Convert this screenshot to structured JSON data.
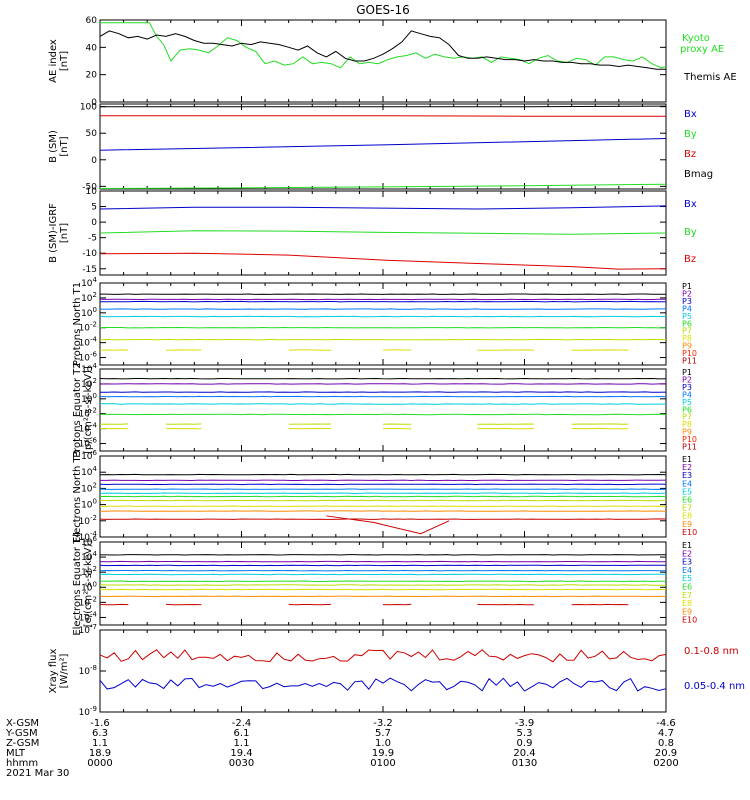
{
  "title": "GOES-16",
  "chart_data": [
    {
      "type": "line",
      "ylabel": "AE index [nT]",
      "ylim": [
        0,
        60
      ],
      "yticks": [
        "0",
        "20",
        "40",
        "60"
      ],
      "series": [
        {
          "name": "Kyoto proxy AE",
          "color": "#22dd22",
          "x": [
            0,
            3,
            6,
            9,
            10.5,
            12,
            13.5,
            15,
            17,
            19,
            21,
            23,
            25,
            27,
            29,
            31,
            33,
            35,
            37,
            39,
            41,
            43,
            45,
            47,
            49,
            51,
            53,
            55,
            57,
            59,
            61,
            63,
            65,
            67,
            69,
            71,
            73,
            75,
            77,
            79,
            81,
            83,
            85,
            87,
            89,
            91,
            93,
            95,
            97,
            99,
            101,
            103,
            105,
            107,
            109,
            111,
            113,
            115,
            117,
            119,
            120
          ],
          "y": [
            58,
            58,
            58,
            58,
            58,
            48,
            42,
            30,
            38,
            39,
            38,
            36,
            41,
            47,
            45,
            40,
            37,
            28,
            30,
            27,
            28,
            33,
            28,
            29,
            28,
            25,
            33,
            28,
            29,
            28,
            31,
            33,
            34,
            36,
            32,
            35,
            33,
            32,
            33,
            32,
            33,
            29,
            33,
            32,
            31,
            28,
            32,
            34,
            30,
            29,
            32,
            31,
            27,
            33,
            33,
            31,
            30,
            33,
            28,
            25,
            26
          ]
        },
        {
          "name": "Themis AE",
          "color": "#000000",
          "x": [
            0,
            2,
            4,
            6,
            8,
            10,
            12,
            14,
            16,
            18,
            20,
            22,
            24,
            26,
            28,
            30,
            32,
            34,
            36,
            38,
            40,
            42,
            44,
            46,
            48,
            50,
            52,
            54,
            56,
            58,
            60,
            62,
            64,
            66,
            68,
            70,
            72,
            74,
            76,
            78,
            80,
            82,
            84,
            86,
            88,
            90,
            92,
            94,
            96,
            98,
            100,
            102,
            104,
            106,
            108,
            110,
            112,
            114,
            116,
            118,
            120
          ],
          "y": [
            48,
            52,
            50,
            47,
            48,
            46,
            49,
            48,
            50,
            48,
            45,
            43,
            43,
            42,
            41,
            43,
            42,
            44,
            43,
            42,
            40,
            38,
            41,
            36,
            33,
            37,
            32,
            30,
            30,
            32,
            35,
            39,
            44,
            52,
            50,
            48,
            47,
            42,
            34,
            32,
            32,
            33,
            32,
            31,
            31,
            30,
            31,
            30,
            30,
            29,
            29,
            28,
            28,
            27,
            27,
            26,
            27,
            26,
            25,
            24,
            24
          ]
        }
      ]
    },
    {
      "type": "line",
      "ylabel": "B (SM) [nT]",
      "ylim": [
        -55,
        105
      ],
      "yticks": [
        "-50",
        "0",
        "50",
        "100"
      ],
      "series": [
        {
          "name": "Bx",
          "color": "#0000cc",
          "x": [
            0,
            30,
            60,
            90,
            120
          ],
          "y": [
            18,
            23,
            28,
            34,
            40
          ]
        },
        {
          "name": "By",
          "color": "#22dd22",
          "x": [
            0,
            30,
            60,
            90,
            120
          ],
          "y": [
            -54,
            -53,
            -51,
            -49,
            -46
          ]
        },
        {
          "name": "Bz",
          "color": "#dd0000",
          "x": [
            0,
            30,
            60,
            90,
            120
          ],
          "y": [
            83,
            83,
            83,
            82,
            82
          ]
        },
        {
          "name": "Bmag",
          "color": "#000000",
          "x": [
            0,
            30,
            60,
            90,
            120
          ],
          "y": [
            100,
            100,
            100,
            100,
            101
          ]
        }
      ]
    },
    {
      "type": "line",
      "ylabel": "B (SM)-IGRF [nT]",
      "ylim": [
        -17,
        10
      ],
      "yticks": [
        "-15",
        "-10",
        "-5",
        "0",
        "5",
        "10"
      ],
      "series": [
        {
          "name": "Bx",
          "color": "#0000cc",
          "x": [
            0,
            20,
            40,
            60,
            80,
            100,
            120
          ],
          "y": [
            4.2,
            4.8,
            4.8,
            4.5,
            4.2,
            4.6,
            5.2
          ]
        },
        {
          "name": "By",
          "color": "#22dd22",
          "x": [
            0,
            20,
            40,
            60,
            80,
            100,
            120
          ],
          "y": [
            -3.5,
            -2.8,
            -2.9,
            -3.3,
            -3.6,
            -3.9,
            -3.5
          ]
        },
        {
          "name": "Bz",
          "color": "#dd0000",
          "x": [
            0,
            20,
            40,
            60,
            80,
            100,
            110,
            120
          ],
          "y": [
            -10.2,
            -10,
            -10.6,
            -12.2,
            -13.3,
            -14.3,
            -15.1,
            -15
          ]
        }
      ]
    },
    {
      "type": "line",
      "ylabel": "Protons North T1",
      "log": true,
      "ylim": [
        -7,
        4
      ],
      "yticks": [
        "10^4",
        "10^2",
        "10^0",
        "10^-2",
        "10^-4",
        "10^-6"
      ],
      "series": [
        {
          "name": "P1",
          "color": "#000000",
          "y": 2.5
        },
        {
          "name": "P2",
          "color": "#7700aa",
          "y": 1.8
        },
        {
          "name": "P3",
          "color": "#0000cc",
          "y": 1.5
        },
        {
          "name": "P4",
          "color": "#0077ff",
          "y": 0.5
        },
        {
          "name": "P5",
          "color": "#00ccdd",
          "y": -0.5
        },
        {
          "name": "P6",
          "color": "#22dd22",
          "y": -2.0
        },
        {
          "name": "P7",
          "color": "#bbdd00",
          "y": -3.6
        },
        {
          "name": "P8",
          "color": "#dddd00",
          "y": -5.0,
          "sparse": true
        },
        {
          "name": "P9",
          "color": "#ff8800"
        },
        {
          "name": "P10",
          "color": "#ff2200"
        },
        {
          "name": "P11",
          "color": "#aa0000"
        }
      ]
    },
    {
      "type": "line",
      "ylabel": "Protons Equator T2 [p/(cm²-s-sr-keV)]",
      "log": true,
      "ylim": [
        -7,
        4
      ],
      "yticks": [
        "10^4",
        "10^2",
        "10^0",
        "10^-2",
        "10^-4",
        "10^-6"
      ],
      "series": [
        {
          "name": "P1",
          "color": "#000000",
          "y": 2.7
        },
        {
          "name": "P2",
          "color": "#7700aa",
          "y": 2.0
        },
        {
          "name": "P3",
          "color": "#0000cc",
          "y": 0.9
        },
        {
          "name": "P4",
          "color": "#0077ff",
          "y": 0.3
        },
        {
          "name": "P5",
          "color": "#00ccdd",
          "y": -0.7
        },
        {
          "name": "P6",
          "color": "#22dd22",
          "y": -2.1
        },
        {
          "name": "P7",
          "color": "#bbdd00",
          "y": -3.4,
          "sparse": true
        },
        {
          "name": "P8",
          "color": "#dddd00",
          "y": -4.0,
          "sparse": true
        },
        {
          "name": "P9",
          "color": "#ff8800"
        },
        {
          "name": "P10",
          "color": "#ff2200"
        },
        {
          "name": "P11",
          "color": "#aa0000"
        }
      ]
    },
    {
      "type": "line",
      "ylabel": "Electrons North T3",
      "log": true,
      "ylim": [
        -4,
        6
      ],
      "yticks": [
        "10^6",
        "10^4",
        "10^2",
        "10^0",
        "10^-2",
        "10^-4"
      ],
      "series": [
        {
          "name": "E1",
          "color": "#000000",
          "y": 3.7
        },
        {
          "name": "E2",
          "color": "#7700aa",
          "y": 3.0
        },
        {
          "name": "E3",
          "color": "#0000cc",
          "y": 2.5
        },
        {
          "name": "E4",
          "color": "#0077ff",
          "y": 1.9
        },
        {
          "name": "E5",
          "color": "#00ccdd",
          "y": 1.4
        },
        {
          "name": "E6",
          "color": "#22dd22",
          "y": 1.0
        },
        {
          "name": "E7",
          "color": "#bbdd00",
          "y": 0.5
        },
        {
          "name": "E8",
          "color": "#dddd00",
          "y": -0.2
        },
        {
          "name": "E9",
          "color": "#ff8800",
          "y": -0.8
        },
        {
          "name": "E10",
          "color": "#cc0000",
          "y": -1.8,
          "dips": true
        }
      ]
    },
    {
      "type": "line",
      "ylabel": "Electrons Equator T4 [e/(cm²-s-sr-keV)]",
      "log": true,
      "ylim": [
        -5,
        6
      ],
      "yticks": [
        "10^6",
        "10^4",
        "10^2",
        "10^0",
        "10^-2",
        "10^-4"
      ],
      "series": [
        {
          "name": "E1",
          "color": "#000000",
          "y": 4.3
        },
        {
          "name": "E2",
          "color": "#7700aa",
          "y": 3.4
        },
        {
          "name": "E3",
          "color": "#0000cc",
          "y": 2.9
        },
        {
          "name": "E4",
          "color": "#0077ff",
          "y": 2.2
        },
        {
          "name": "E5",
          "color": "#00ccdd",
          "y": 1.7
        },
        {
          "name": "E6",
          "color": "#22dd22",
          "y": 0.8
        },
        {
          "name": "E7",
          "color": "#bbdd00",
          "y": 0.3
        },
        {
          "name": "E8",
          "color": "#dddd00",
          "y": -0.3
        },
        {
          "name": "E9",
          "color": "#ff8800",
          "y": -1.2
        },
        {
          "name": "E10",
          "color": "#cc0000",
          "y": -2.3,
          "sparse": true
        }
      ]
    },
    {
      "type": "line",
      "ylabel": "Xray flux [W/m²]",
      "log": true,
      "ylim": [
        -9,
        -7
      ],
      "yticks": [
        "10^-7",
        "10^-8",
        "10^-9"
      ],
      "series": [
        {
          "name": "0.1-0.8 nm",
          "color": "#cc0000",
          "y": -7.62
        },
        {
          "name": "0.05-0.4 nm",
          "color": "#0000cc",
          "y": -8.33
        }
      ]
    }
  ],
  "x_axis": {
    "row_labels": [
      "X-GSM",
      "Y-GSM",
      "Z-GSM",
      "MLT",
      "hhmm"
    ],
    "columns": [
      [
        "-1.6",
        "6.3",
        "1.1",
        "18.9",
        "0000"
      ],
      [
        "-2.4",
        "6.1",
        "1.1",
        "19.4",
        "0030"
      ],
      [
        "-3.2",
        "5.7",
        "1.0",
        "19.9",
        "0100"
      ],
      [
        "-3.9",
        "5.3",
        "0.9",
        "20.4",
        "0130"
      ],
      [
        "-4.6",
        "4.7",
        "0.8",
        "20.9",
        "0200"
      ]
    ],
    "date": "2021 Mar 30"
  },
  "legend_labels": {
    "ae": [
      "Kyoto",
      "proxy AE",
      "Themis AE"
    ],
    "b": [
      "Bx",
      "By",
      "Bz",
      "Bmag"
    ],
    "bigrf": [
      "Bx",
      "By",
      "Bz"
    ],
    "xray": [
      "0.1-0.8 nm",
      "0.05-0.4 nm"
    ]
  }
}
